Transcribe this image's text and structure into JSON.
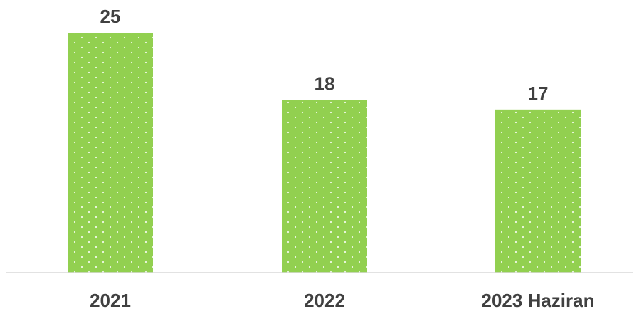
{
  "chart_data": {
    "type": "bar",
    "categories": [
      "2021",
      "2022",
      "2023 Haziran"
    ],
    "values": [
      25,
      18,
      17
    ],
    "title": "",
    "xlabel": "",
    "ylabel": "",
    "ylim": [
      0,
      25
    ],
    "grid": false,
    "legend": "none",
    "colors": {
      "bar": "#92D050",
      "dots": "#FFFFFF",
      "axis": "#D9D9D9",
      "text": "#404040"
    }
  }
}
